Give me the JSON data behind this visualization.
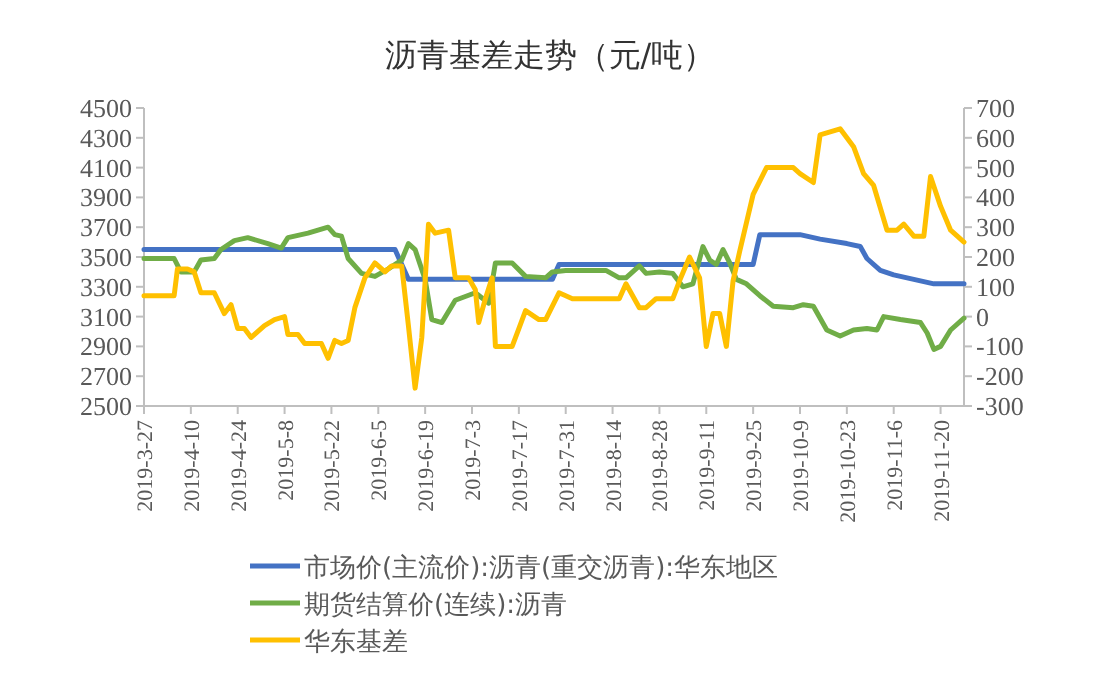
{
  "chart_data": {
    "type": "line",
    "title": "沥青基差走势（元/吨）",
    "legend": "bottom",
    "grid": false,
    "xlim": [
      "2019-03-27",
      "2019-11-27"
    ],
    "xticks": [
      {
        "value": "2019-03-27",
        "label": "2019-3-27"
      },
      {
        "value": "2019-04-10",
        "label": "2019-4-10"
      },
      {
        "value": "2019-04-24",
        "label": "2019-4-24"
      },
      {
        "value": "2019-05-08",
        "label": "2019-5-8"
      },
      {
        "value": "2019-05-22",
        "label": "2019-5-22"
      },
      {
        "value": "2019-06-05",
        "label": "2019-6-5"
      },
      {
        "value": "2019-06-19",
        "label": "2019-6-19"
      },
      {
        "value": "2019-07-03",
        "label": "2019-7-3"
      },
      {
        "value": "2019-07-17",
        "label": "2019-7-17"
      },
      {
        "value": "2019-07-31",
        "label": "2019-7-31"
      },
      {
        "value": "2019-08-14",
        "label": "2019-8-14"
      },
      {
        "value": "2019-08-28",
        "label": "2019-8-28"
      },
      {
        "value": "2019-09-11",
        "label": "2019-9-11"
      },
      {
        "value": "2019-09-25",
        "label": "2019-9-25"
      },
      {
        "value": "2019-10-09",
        "label": "2019-10-9"
      },
      {
        "value": "2019-10-23",
        "label": "2019-10-23"
      },
      {
        "value": "2019-11-06",
        "label": "2019-11-6"
      },
      {
        "value": "2019-11-20",
        "label": "2019-11-20"
      }
    ],
    "ylim": [
      2500,
      4500
    ],
    "yticks": [
      2500,
      2700,
      2900,
      3100,
      3300,
      3500,
      3700,
      3900,
      4100,
      4300,
      4500
    ],
    "y2lim": [
      -300,
      700
    ],
    "y2ticks": [
      -300,
      -200,
      -100,
      0,
      100,
      200,
      300,
      400,
      500,
      600,
      700
    ],
    "series": [
      {
        "name": "市场价(主流价):沥青(重交沥青):华东地区",
        "color": "#4472c4",
        "x": [
          "2019-03-27",
          "2019-06-10",
          "2019-06-14",
          "2019-07-27",
          "2019-07-29",
          "2019-09-25",
          "2019-09-27",
          "2019-10-09",
          "2019-10-15",
          "2019-10-23",
          "2019-10-27",
          "2019-10-29",
          "2019-11-02",
          "2019-11-06",
          "2019-11-12",
          "2019-11-18",
          "2019-11-27"
        ],
        "values": [
          3550,
          3550,
          3350,
          3350,
          3450,
          3450,
          3650,
          3650,
          3620,
          3590,
          3570,
          3490,
          3410,
          3380,
          3350,
          3320,
          3320
        ]
      },
      {
        "name": "期货结算价(连续):沥青",
        "color": "#70ad47",
        "x": [
          "2019-03-27",
          "2019-04-05",
          "2019-04-07",
          "2019-04-11",
          "2019-04-13",
          "2019-04-17",
          "2019-04-19",
          "2019-04-23",
          "2019-04-27",
          "2019-05-03",
          "2019-05-07",
          "2019-05-09",
          "2019-05-15",
          "2019-05-21",
          "2019-05-23",
          "2019-05-25",
          "2019-05-27",
          "2019-05-31",
          "2019-06-04",
          "2019-06-08",
          "2019-06-12",
          "2019-06-14",
          "2019-06-16",
          "2019-06-19",
          "2019-06-21",
          "2019-06-24",
          "2019-06-28",
          "2019-07-04",
          "2019-07-08",
          "2019-07-10",
          "2019-07-15",
          "2019-07-19",
          "2019-07-25",
          "2019-07-27",
          "2019-07-31",
          "2019-08-12",
          "2019-08-16",
          "2019-08-18",
          "2019-08-22",
          "2019-08-24",
          "2019-08-28",
          "2019-09-01",
          "2019-09-04",
          "2019-09-07",
          "2019-09-10",
          "2019-09-12",
          "2019-09-14",
          "2019-09-16",
          "2019-09-18",
          "2019-09-20",
          "2019-09-23",
          "2019-09-27",
          "2019-10-01",
          "2019-10-07",
          "2019-10-10",
          "2019-10-13",
          "2019-10-17",
          "2019-10-21",
          "2019-10-25",
          "2019-10-29",
          "2019-11-01",
          "2019-11-03",
          "2019-11-08",
          "2019-11-11",
          "2019-11-14",
          "2019-11-16",
          "2019-11-18",
          "2019-11-20",
          "2019-11-23",
          "2019-11-27"
        ],
        "values": [
          3490,
          3490,
          3400,
          3400,
          3480,
          3490,
          3550,
          3610,
          3630,
          3590,
          3560,
          3630,
          3660,
          3700,
          3650,
          3640,
          3490,
          3390,
          3370,
          3420,
          3480,
          3590,
          3550,
          3350,
          3080,
          3060,
          3210,
          3260,
          3190,
          3460,
          3460,
          3370,
          3360,
          3400,
          3410,
          3410,
          3360,
          3360,
          3440,
          3390,
          3400,
          3390,
          3300,
          3320,
          3570,
          3480,
          3450,
          3550,
          3460,
          3350,
          3320,
          3240,
          3170,
          3160,
          3180,
          3170,
          3010,
          2970,
          3010,
          3020,
          3010,
          3100,
          3080,
          3070,
          3060,
          2990,
          2880,
          2900,
          3010,
          3090
        ]
      },
      {
        "name": "华东基差",
        "color": "#ffc000",
        "axis": "y2",
        "x": [
          "2019-03-27",
          "2019-04-05",
          "2019-04-06",
          "2019-04-09",
          "2019-04-11",
          "2019-04-13",
          "2019-04-17",
          "2019-04-20",
          "2019-04-22",
          "2019-04-24",
          "2019-04-26",
          "2019-04-28",
          "2019-05-02",
          "2019-05-05",
          "2019-05-08",
          "2019-05-09",
          "2019-05-12",
          "2019-05-14",
          "2019-05-19",
          "2019-05-21",
          "2019-05-23",
          "2019-05-25",
          "2019-05-27",
          "2019-05-29",
          "2019-06-01",
          "2019-06-04",
          "2019-06-07",
          "2019-06-09",
          "2019-06-12",
          "2019-06-14",
          "2019-06-16",
          "2019-06-18",
          "2019-06-20",
          "2019-06-22",
          "2019-06-26",
          "2019-06-28",
          "2019-07-02",
          "2019-07-04",
          "2019-07-05",
          "2019-07-07",
          "2019-07-09",
          "2019-07-10",
          "2019-07-15",
          "2019-07-17",
          "2019-07-19",
          "2019-07-23",
          "2019-07-25",
          "2019-07-29",
          "2019-08-02",
          "2019-08-12",
          "2019-08-16",
          "2019-08-18",
          "2019-08-22",
          "2019-08-24",
          "2019-08-27",
          "2019-09-01",
          "2019-09-03",
          "2019-09-06",
          "2019-09-09",
          "2019-09-11",
          "2019-09-13",
          "2019-09-15",
          "2019-09-17",
          "2019-09-19",
          "2019-09-21",
          "2019-09-25",
          "2019-09-29",
          "2019-10-07",
          "2019-10-09",
          "2019-10-13",
          "2019-10-15",
          "2019-10-21",
          "2019-10-25",
          "2019-10-28",
          "2019-10-31",
          "2019-11-04",
          "2019-11-07",
          "2019-11-09",
          "2019-11-12",
          "2019-11-15",
          "2019-11-17",
          "2019-11-20",
          "2019-11-23",
          "2019-11-27"
        ],
        "values": [
          70,
          70,
          160,
          160,
          150,
          80,
          80,
          10,
          40,
          -40,
          -40,
          -70,
          -30,
          -10,
          0,
          -60,
          -60,
          -90,
          -90,
          -140,
          -80,
          -90,
          -80,
          30,
          130,
          180,
          150,
          170,
          170,
          -30,
          -240,
          -70,
          310,
          280,
          290,
          130,
          130,
          90,
          -20,
          60,
          130,
          -100,
          -100,
          -40,
          20,
          -10,
          -10,
          80,
          60,
          60,
          60,
          110,
          30,
          30,
          60,
          60,
          120,
          200,
          130,
          -100,
          10,
          10,
          -100,
          120,
          220,
          410,
          500,
          500,
          480,
          450,
          610,
          630,
          570,
          480,
          440,
          290,
          290,
          310,
          270,
          270,
          470,
          370,
          290,
          250
        ]
      }
    ]
  }
}
